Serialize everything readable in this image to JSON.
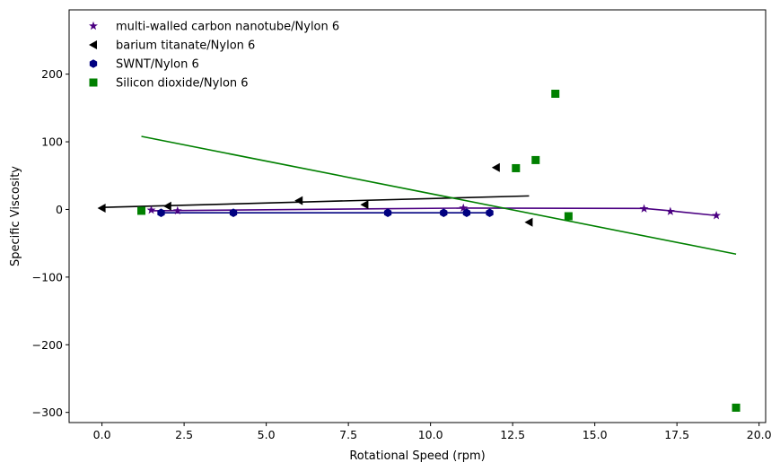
{
  "chart_data": {
    "type": "scatter",
    "title": "",
    "xlabel": "Rotational Speed (rpm)",
    "ylabel": "Specific Viscosity",
    "xlim": [
      -1.0,
      20.2
    ],
    "ylim": [
      -315,
      295
    ],
    "xticks": [
      0.0,
      2.5,
      5.0,
      7.5,
      10.0,
      12.5,
      15.0,
      17.5,
      20.0
    ],
    "xtick_labels": [
      "0.0",
      "2.5",
      "5.0",
      "7.5",
      "10.0",
      "12.5",
      "15.0",
      "17.5",
      "20.0"
    ],
    "yticks": [
      -300,
      -200,
      -100,
      0,
      100,
      200
    ],
    "ytick_labels": [
      "−300",
      "−200",
      "−100",
      "0",
      "100",
      "200"
    ],
    "grid": false,
    "legend_position": "top-left",
    "series": [
      {
        "name": "multi-walled carbon nanotube/Nylon 6",
        "marker": "star",
        "color": "#4b0082",
        "points": [
          [
            1.5,
            -1
          ],
          [
            2.3,
            -2
          ],
          [
            11.0,
            2
          ],
          [
            16.5,
            1
          ],
          [
            17.3,
            -3
          ],
          [
            18.7,
            -9
          ]
        ],
        "fit": [
          [
            1.5,
            -2
          ],
          [
            8.5,
            1
          ],
          [
            11.0,
            2
          ],
          [
            16.5,
            1.5
          ],
          [
            17.3,
            -2
          ],
          [
            18.7,
            -9
          ]
        ]
      },
      {
        "name": "barium titanate/Nylon 6",
        "marker": "triangle-left",
        "color": "#000000",
        "points": [
          [
            0.0,
            2
          ],
          [
            2.0,
            5
          ],
          [
            6.0,
            13
          ],
          [
            8.0,
            7
          ],
          [
            12.0,
            62
          ],
          [
            13.0,
            -19
          ]
        ],
        "fit": [
          [
            0.0,
            3
          ],
          [
            13.0,
            20
          ]
        ]
      },
      {
        "name": "SWNT/Nylon 6",
        "marker": "hexagon",
        "color": "#000080",
        "points": [
          [
            1.8,
            -5
          ],
          [
            4.0,
            -5
          ],
          [
            8.7,
            -5
          ],
          [
            10.4,
            -5
          ],
          [
            11.1,
            -5
          ],
          [
            11.8,
            -5
          ]
        ],
        "fit": [
          [
            1.8,
            -5
          ],
          [
            11.8,
            -5
          ]
        ]
      },
      {
        "name": "Silicon dioxide/Nylon 6",
        "marker": "square",
        "color": "#008000",
        "points": [
          [
            1.2,
            -2
          ],
          [
            12.6,
            61
          ],
          [
            13.2,
            73
          ],
          [
            13.8,
            171
          ],
          [
            14.2,
            -10
          ],
          [
            19.3,
            -293
          ]
        ],
        "fit": [
          [
            1.2,
            108
          ],
          [
            19.3,
            -66
          ]
        ]
      }
    ]
  }
}
